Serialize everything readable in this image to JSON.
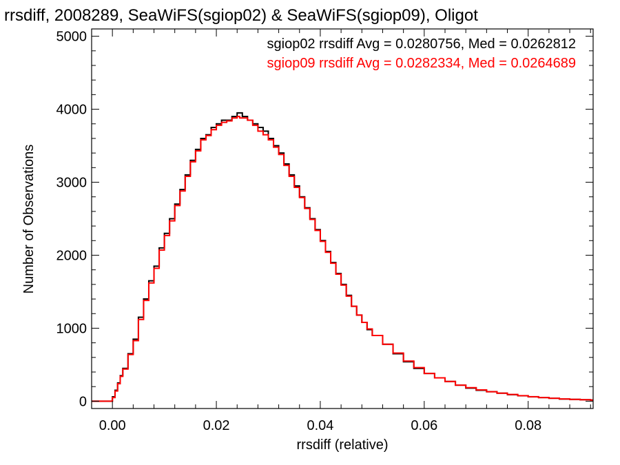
{
  "page": {
    "title": "rrsdiff, 2008289, SeaWiFS(sgiop02) & SeaWiFS(sgiop09), Oligot"
  },
  "chart_data": {
    "type": "line",
    "style": "histogram-step",
    "xlabel": "rrsdiff (relative)",
    "ylabel": "Number of Observations",
    "xlim": [
      -0.004,
      0.0925
    ],
    "ylim": [
      -100,
      5100
    ],
    "xticks": [
      0.0,
      0.02,
      0.04,
      0.06,
      0.08
    ],
    "xtick_labels": [
      "0.00",
      "0.02",
      "0.04",
      "0.06",
      "0.08"
    ],
    "yticks": [
      0,
      1000,
      2000,
      3000,
      4000,
      5000
    ],
    "ytick_labels": [
      "0",
      "1000",
      "2000",
      "3000",
      "4000",
      "5000"
    ],
    "annotations": [
      {
        "text": "sgiop02 rrsdiff Avg = 0.0280756, Med = 0.0262812",
        "color": "#000000"
      },
      {
        "text": "sgiop09 rrsdiff Avg = 0.0282334, Med = 0.0264689",
        "color": "#ff0000"
      }
    ],
    "grid": false,
    "series": [
      {
        "color": "#000000",
        "x": [
          -0.004,
          -0.002,
          -0.0005,
          0.0,
          0.0005,
          0.001,
          0.0015,
          0.002,
          0.003,
          0.004,
          0.005,
          0.006,
          0.007,
          0.008,
          0.009,
          0.01,
          0.011,
          0.012,
          0.013,
          0.014,
          0.015,
          0.016,
          0.017,
          0.018,
          0.019,
          0.02,
          0.021,
          0.022,
          0.023,
          0.024,
          0.0245,
          0.025,
          0.026,
          0.027,
          0.028,
          0.029,
          0.03,
          0.031,
          0.032,
          0.033,
          0.034,
          0.035,
          0.036,
          0.037,
          0.038,
          0.039,
          0.04,
          0.041,
          0.042,
          0.043,
          0.044,
          0.045,
          0.046,
          0.047,
          0.048,
          0.049,
          0.05,
          0.052,
          0.054,
          0.056,
          0.058,
          0.06,
          0.062,
          0.064,
          0.066,
          0.068,
          0.07,
          0.072,
          0.074,
          0.076,
          0.078,
          0.08,
          0.082,
          0.084,
          0.086,
          0.088,
          0.09,
          0.092
        ],
        "y": [
          0,
          0,
          0,
          60,
          150,
          250,
          350,
          450,
          650,
          850,
          1150,
          1400,
          1650,
          1850,
          2100,
          2300,
          2500,
          2700,
          2900,
          3100,
          3300,
          3450,
          3600,
          3650,
          3750,
          3800,
          3850,
          3850,
          3900,
          3950,
          3950,
          3900,
          3850,
          3800,
          3750,
          3700,
          3600,
          3500,
          3400,
          3250,
          3100,
          2950,
          2800,
          2650,
          2500,
          2350,
          2200,
          2050,
          1900,
          1750,
          1600,
          1450,
          1300,
          1180,
          1080,
          980,
          900,
          780,
          650,
          540,
          450,
          380,
          320,
          270,
          220,
          180,
          150,
          130,
          110,
          90,
          75,
          60,
          50,
          40,
          30,
          25,
          20,
          15
        ]
      },
      {
        "color": "#ff0000",
        "x": [
          -0.004,
          -0.002,
          -0.0005,
          0.0,
          0.0005,
          0.001,
          0.0015,
          0.002,
          0.003,
          0.004,
          0.005,
          0.006,
          0.007,
          0.008,
          0.009,
          0.01,
          0.011,
          0.012,
          0.013,
          0.014,
          0.015,
          0.016,
          0.017,
          0.018,
          0.019,
          0.02,
          0.021,
          0.022,
          0.023,
          0.024,
          0.0245,
          0.025,
          0.026,
          0.027,
          0.028,
          0.029,
          0.03,
          0.031,
          0.032,
          0.033,
          0.034,
          0.035,
          0.036,
          0.037,
          0.038,
          0.039,
          0.04,
          0.041,
          0.042,
          0.043,
          0.044,
          0.045,
          0.046,
          0.047,
          0.048,
          0.049,
          0.05,
          0.052,
          0.054,
          0.056,
          0.058,
          0.06,
          0.062,
          0.064,
          0.066,
          0.068,
          0.07,
          0.072,
          0.074,
          0.076,
          0.078,
          0.08,
          0.082,
          0.084,
          0.086,
          0.088,
          0.09,
          0.092
        ],
        "y": [
          0,
          0,
          0,
          50,
          140,
          240,
          340,
          440,
          640,
          830,
          1120,
          1380,
          1620,
          1820,
          2070,
          2270,
          2470,
          2680,
          2880,
          3080,
          3280,
          3430,
          3580,
          3640,
          3720,
          3780,
          3820,
          3840,
          3880,
          3900,
          3880,
          3880,
          3850,
          3780,
          3700,
          3650,
          3580,
          3480,
          3380,
          3230,
          3080,
          2930,
          2790,
          2640,
          2490,
          2340,
          2190,
          2040,
          1890,
          1740,
          1590,
          1440,
          1300,
          1180,
          1080,
          990,
          900,
          780,
          660,
          550,
          460,
          380,
          320,
          270,
          220,
          185,
          155,
          130,
          110,
          92,
          76,
          62,
          50,
          40,
          31,
          25,
          20,
          15
        ]
      }
    ]
  }
}
